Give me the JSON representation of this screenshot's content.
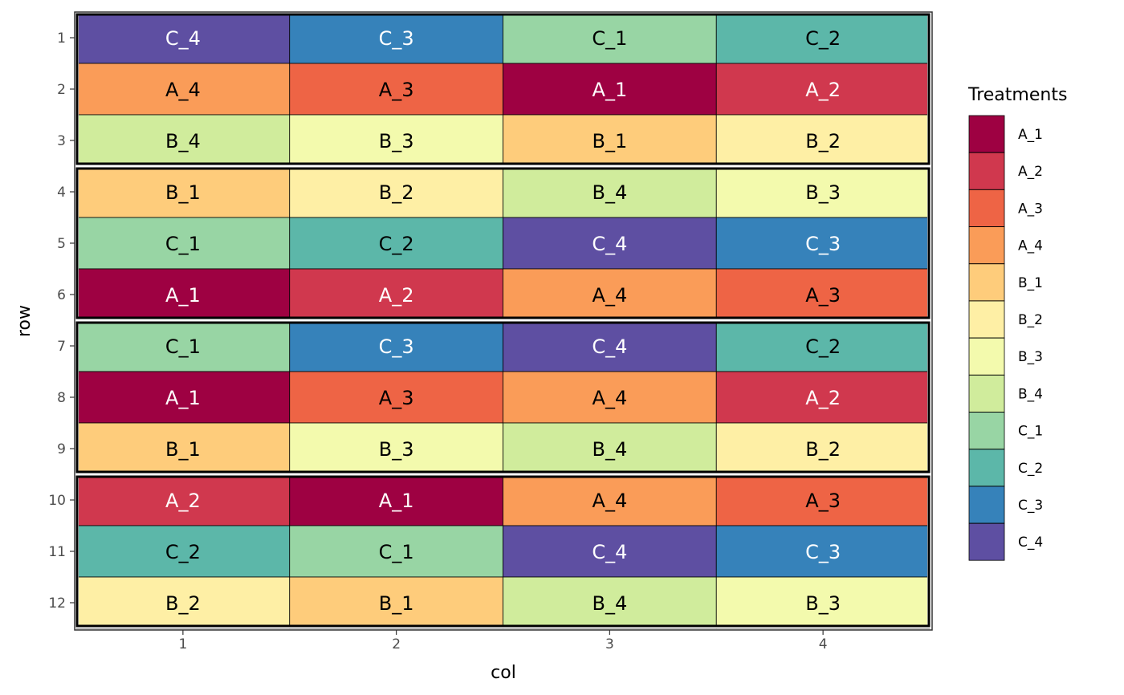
{
  "chart_data": {
    "type": "heatmap",
    "xlabel": "col",
    "ylabel": "row",
    "x_ticks": [
      "1",
      "2",
      "3",
      "4"
    ],
    "y_ticks": [
      "1",
      "2",
      "3",
      "4",
      "5",
      "6",
      "7",
      "8",
      "9",
      "10",
      "11",
      "12"
    ],
    "xlim": [
      0.5,
      4.5
    ],
    "ylim": [
      0.5,
      12.5
    ],
    "grid": false,
    "legend": {
      "title": "Treatments",
      "placement": "right",
      "entries": [
        "A_1",
        "A_2",
        "A_3",
        "A_4",
        "B_1",
        "B_2",
        "B_3",
        "B_4",
        "C_1",
        "C_2",
        "C_3",
        "C_4"
      ]
    },
    "colors": {
      "A_1": "#9E0142",
      "A_2": "#D0384E",
      "A_3": "#EE6445",
      "A_4": "#FA9C58",
      "B_1": "#FECC7B",
      "B_2": "#FEEFA5",
      "B_3": "#F3FAAD",
      "B_4": "#D0EC9C",
      "C_1": "#98D5A4",
      "C_2": "#5CB7A9",
      "C_3": "#3682BA",
      "C_4": "#5E4FA2"
    },
    "white_text": [
      "A_1",
      "A_2",
      "C_3",
      "C_4"
    ],
    "blocks": [
      [
        1,
        3
      ],
      [
        4,
        6
      ],
      [
        7,
        9
      ],
      [
        10,
        12
      ]
    ],
    "rows": [
      [
        "C_4",
        "C_3",
        "C_1",
        "C_2"
      ],
      [
        "A_4",
        "A_3",
        "A_1",
        "A_2"
      ],
      [
        "B_4",
        "B_3",
        "B_1",
        "B_2"
      ],
      [
        "B_1",
        "B_2",
        "B_4",
        "B_3"
      ],
      [
        "C_1",
        "C_2",
        "C_4",
        "C_3"
      ],
      [
        "A_1",
        "A_2",
        "A_4",
        "A_3"
      ],
      [
        "C_1",
        "C_3",
        "C_4",
        "C_2"
      ],
      [
        "A_1",
        "A_3",
        "A_4",
        "A_2"
      ],
      [
        "B_1",
        "B_3",
        "B_4",
        "B_2"
      ],
      [
        "A_2",
        "A_1",
        "A_4",
        "A_3"
      ],
      [
        "C_2",
        "C_1",
        "C_4",
        "C_3"
      ],
      [
        "B_2",
        "B_1",
        "B_4",
        "B_3"
      ]
    ]
  }
}
